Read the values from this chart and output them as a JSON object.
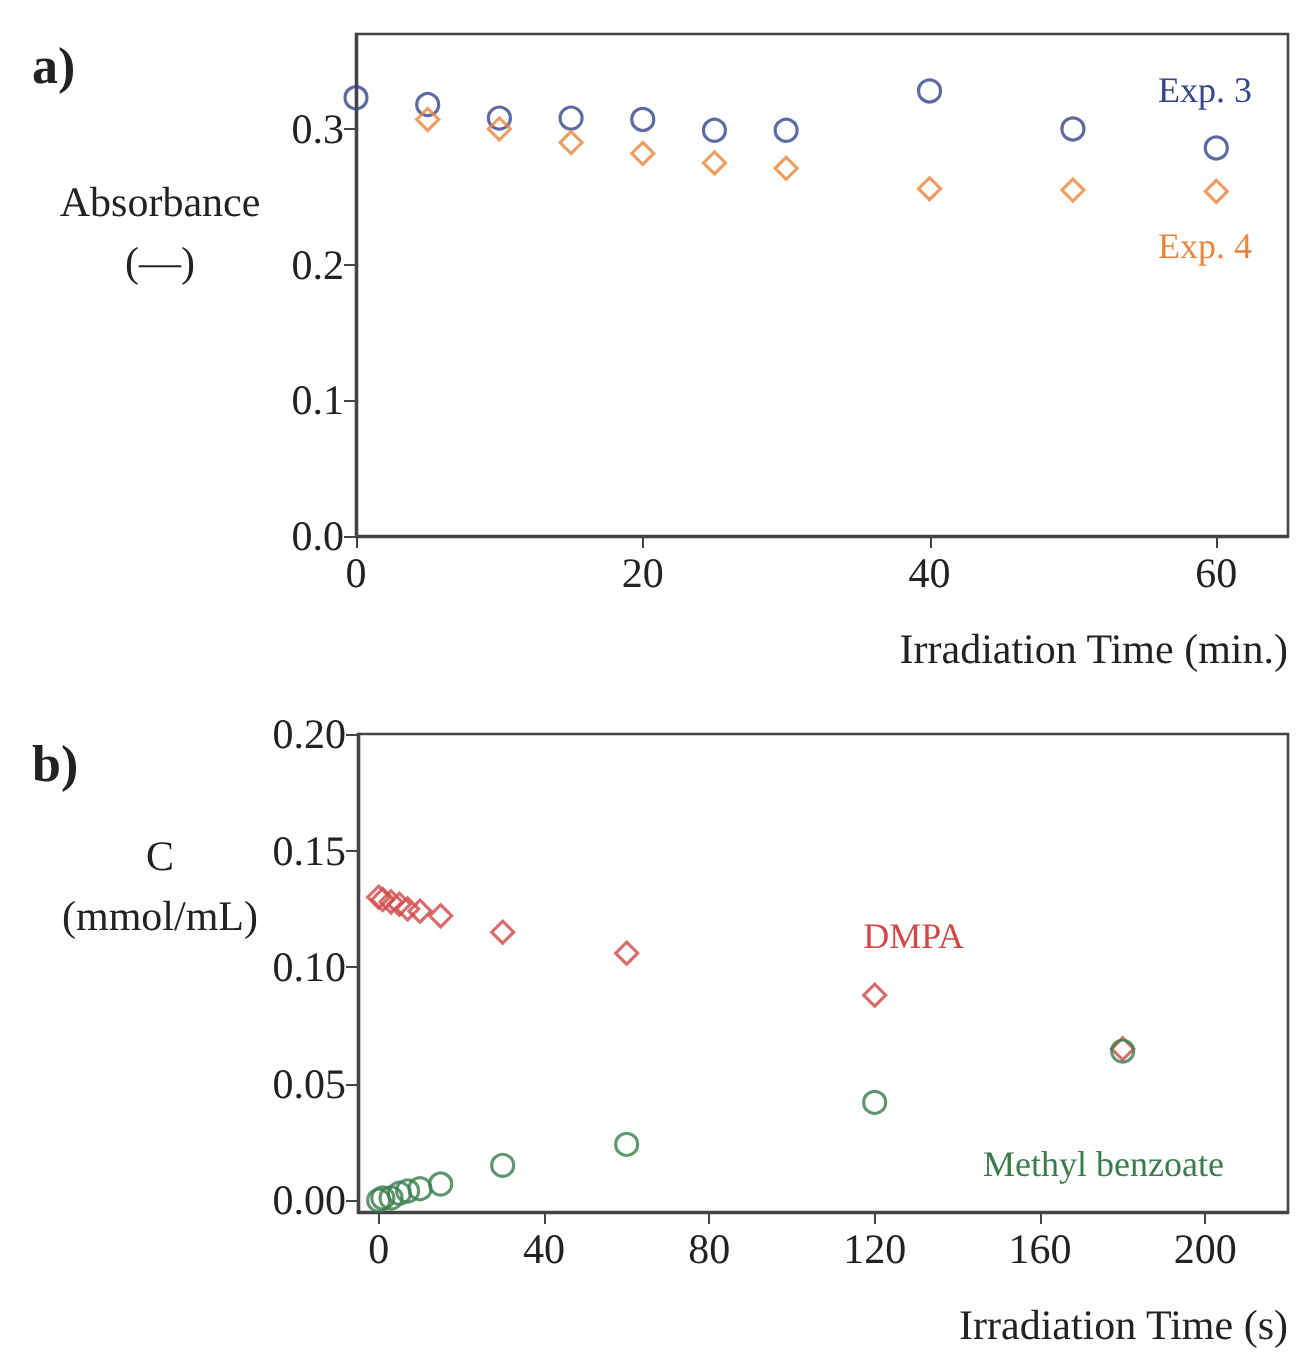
{
  "chart_data": [
    {
      "type": "scatter",
      "xlabel": "Irradiation Time (min.)",
      "ylabel": "Absorbance\n(—)",
      "annotations": [
        "a)"
      ],
      "xlim": [
        0,
        65
      ],
      "ylim": [
        0,
        0.37
      ],
      "xticks": [
        0,
        20,
        40,
        60
      ],
      "yticks": [
        {
          "value": 0,
          "label": "0.0"
        },
        {
          "value": 0.1,
          "label": "0.1"
        },
        {
          "value": 0.2,
          "label": "0.2"
        },
        {
          "value": 0.3,
          "label": "0.3"
        }
      ],
      "grid": false,
      "legend": false,
      "series": [
        {
          "name": "Exp. 3",
          "color": "#36458a",
          "marker": "circle",
          "x": [
            0,
            5,
            10,
            15,
            20,
            25,
            30,
            40,
            50,
            60
          ],
          "values": [
            0.323,
            0.318,
            0.308,
            0.308,
            0.307,
            0.299,
            0.299,
            0.328,
            0.3,
            0.286
          ]
        },
        {
          "name": "Exp. 4",
          "color": "#e8873c",
          "marker": "diamond",
          "x": [
            5,
            10,
            15,
            20,
            25,
            30,
            40,
            50,
            60
          ],
          "values": [
            0.307,
            0.3,
            0.29,
            0.282,
            0.275,
            0.271,
            0.256,
            0.255,
            0.254
          ]
        }
      ]
    },
    {
      "type": "scatter",
      "xlabel": "Irradiation Time (s)",
      "ylabel": "C\n(mmol/mL)",
      "annotations": [
        "b)"
      ],
      "xlim": [
        -5,
        220
      ],
      "ylim": [
        -0.005,
        0.2
      ],
      "xticks": [
        0,
        40,
        80,
        120,
        160,
        200
      ],
      "yticks": [
        {
          "value": 0,
          "label": "0.00"
        },
        {
          "value": 0.05,
          "label": "0.05"
        },
        {
          "value": 0.1,
          "label": "0.10"
        },
        {
          "value": 0.15,
          "label": "0.15"
        },
        {
          "value": 0.2,
          "label": "0.20"
        }
      ],
      "grid": false,
      "legend": false,
      "series": [
        {
          "name": "DMPA",
          "color": "#d04848",
          "marker": "diamond",
          "x": [
            0,
            1,
            3,
            5,
            7,
            10,
            15,
            30,
            60,
            120,
            180
          ],
          "values": [
            0.13,
            0.129,
            0.128,
            0.127,
            0.125,
            0.124,
            0.122,
            0.115,
            0.106,
            0.088,
            0.065
          ]
        },
        {
          "name": "Methyl benzoate",
          "color": "#3a7d4c",
          "marker": "circle",
          "x": [
            0,
            1,
            3,
            5,
            7,
            10,
            15,
            30,
            60,
            120,
            180
          ],
          "values": [
            0.0,
            0.001,
            0.001,
            0.003,
            0.004,
            0.005,
            0.007,
            0.015,
            0.024,
            0.042,
            0.064
          ]
        }
      ]
    }
  ]
}
